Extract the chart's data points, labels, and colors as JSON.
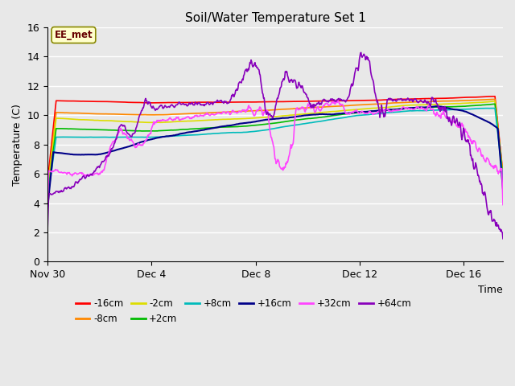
{
  "title": "Soil/Water Temperature Set 1",
  "xlabel": "Time",
  "ylabel": "Temperature (C)",
  "ylim": [
    0,
    16
  ],
  "yticks": [
    0,
    2,
    4,
    6,
    8,
    10,
    12,
    14,
    16
  ],
  "background_color": "#e8e8e8",
  "plot_bg_color": "#e8e8e8",
  "annotation_text": "EE_met",
  "annotation_bg": "#ffffcc",
  "annotation_border": "#888800",
  "series": {
    "-16cm": {
      "color": "#ff0000",
      "lw": 1.2
    },
    "-8cm": {
      "color": "#ff8800",
      "lw": 1.2
    },
    "-2cm": {
      "color": "#dddd00",
      "lw": 1.2
    },
    "+2cm": {
      "color": "#00bb00",
      "lw": 1.2
    },
    "+8cm": {
      "color": "#00bbbb",
      "lw": 1.2
    },
    "+16cm": {
      "color": "#000088",
      "lw": 1.5
    },
    "+32cm": {
      "color": "#ff44ff",
      "lw": 1.2
    },
    "+64cm": {
      "color": "#8800bb",
      "lw": 1.2
    }
  },
  "xtick_labels": [
    "Nov 30",
    "Dec 4",
    "Dec 8",
    "Dec 12",
    "Dec 16"
  ],
  "xtick_positions": [
    0,
    4,
    8,
    12,
    16
  ]
}
